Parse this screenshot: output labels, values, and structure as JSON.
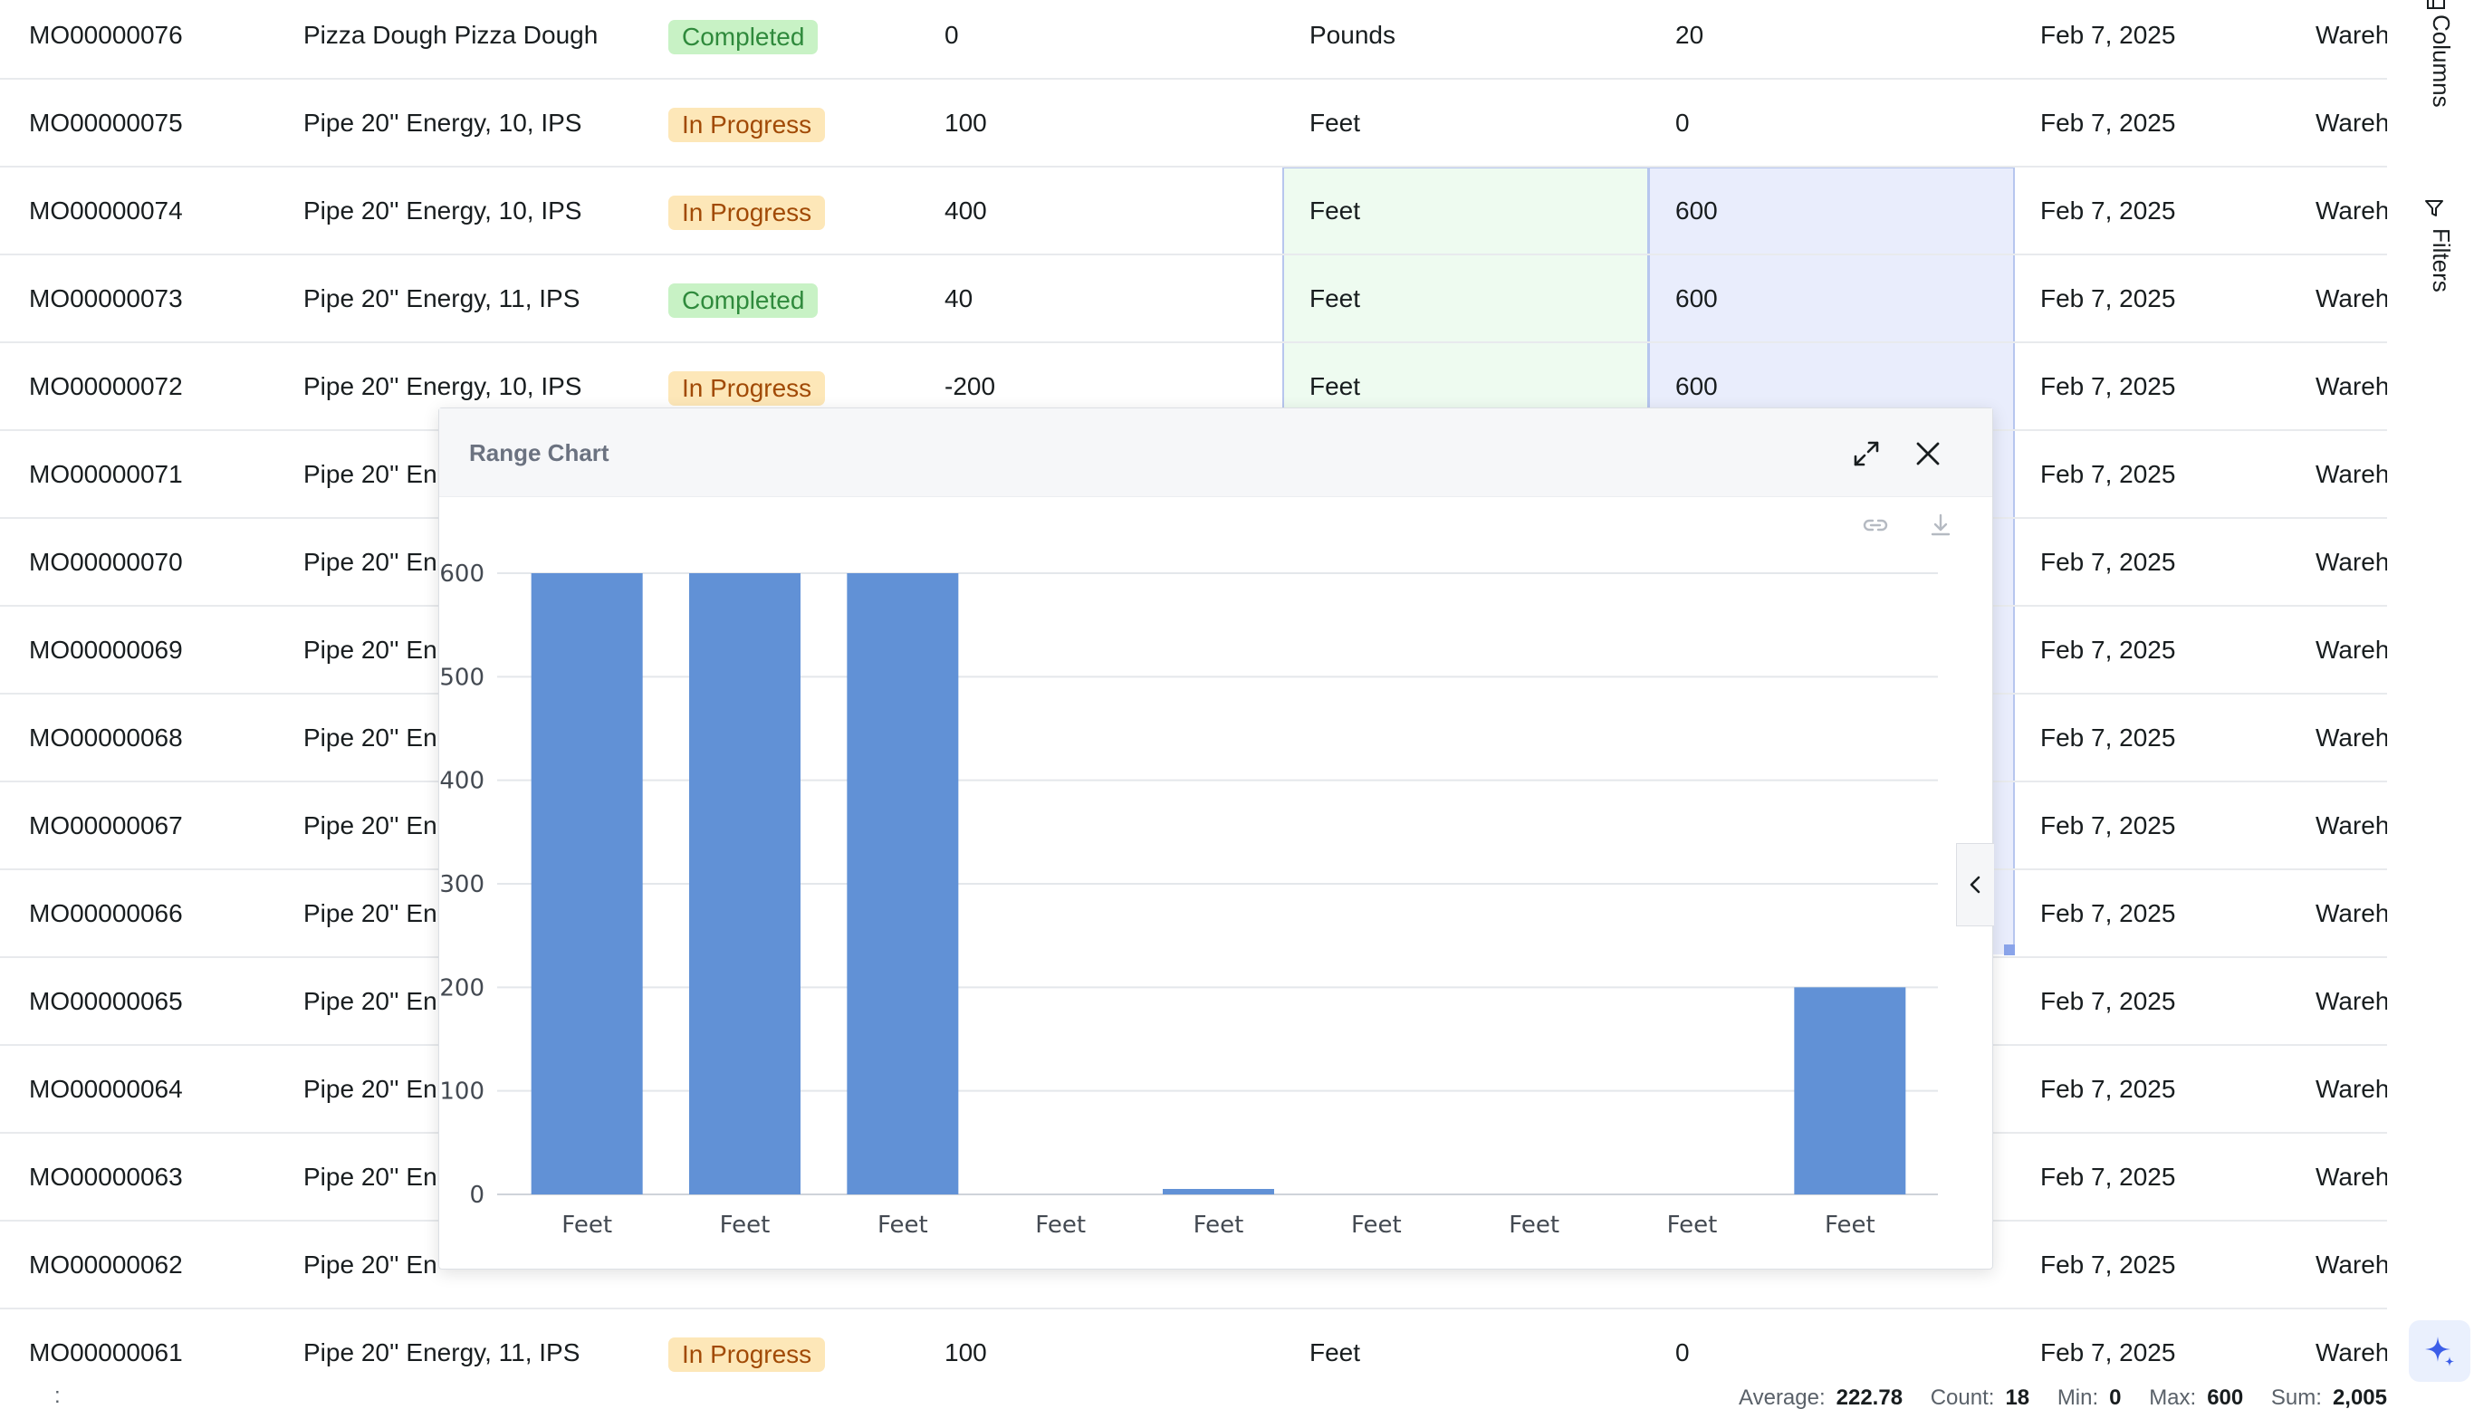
{
  "grid": {
    "rows": [
      {
        "id": "MO00000076",
        "item": "Pizza Dough Pizza Dough",
        "status": "Completed",
        "qty": "0",
        "uom": "Pounds",
        "amount": "20",
        "date": "Feb 7, 2025",
        "warehouse": "Wareho"
      },
      {
        "id": "MO00000075",
        "item": "Pipe 20'' Energy, 10, IPS",
        "status": "In Progress",
        "qty": "100",
        "uom": "Feet",
        "amount": "0",
        "date": "Feb 7, 2025",
        "warehouse": "Wareho"
      },
      {
        "id": "MO00000074",
        "item": "Pipe 20'' Energy, 10, IPS",
        "status": "In Progress",
        "qty": "400",
        "uom": "Feet",
        "amount": "600",
        "date": "Feb 7, 2025",
        "warehouse": "Wareho"
      },
      {
        "id": "MO00000073",
        "item": "Pipe 20'' Energy, 11, IPS",
        "status": "Completed",
        "qty": "40",
        "uom": "Feet",
        "amount": "600",
        "date": "Feb 7, 2025",
        "warehouse": "Wareho"
      },
      {
        "id": "MO00000072",
        "item": "Pipe 20'' Energy, 10, IPS",
        "status": "In Progress",
        "qty": "-200",
        "uom": "Feet",
        "amount": "600",
        "date": "Feb 7, 2025",
        "warehouse": "Wareho"
      },
      {
        "id": "MO00000071",
        "item": "Pipe 20'' En",
        "status": "",
        "qty": "",
        "uom": "",
        "amount": "",
        "date": "Feb 7, 2025",
        "warehouse": "Wareho"
      },
      {
        "id": "MO00000070",
        "item": "Pipe 20'' En",
        "status": "",
        "qty": "",
        "uom": "",
        "amount": "",
        "date": "Feb 7, 2025",
        "warehouse": "Wareho"
      },
      {
        "id": "MO00000069",
        "item": "Pipe 20'' En",
        "status": "",
        "qty": "",
        "uom": "",
        "amount": "",
        "date": "Feb 7, 2025",
        "warehouse": "Wareho"
      },
      {
        "id": "MO00000068",
        "item": "Pipe 20'' En",
        "status": "",
        "qty": "",
        "uom": "",
        "amount": "",
        "date": "Feb 7, 2025",
        "warehouse": "Wareho"
      },
      {
        "id": "MO00000067",
        "item": "Pipe 20'' En",
        "status": "",
        "qty": "",
        "uom": "",
        "amount": "",
        "date": "Feb 7, 2025",
        "warehouse": "Wareho"
      },
      {
        "id": "MO00000066",
        "item": "Pipe 20'' En",
        "status": "",
        "qty": "",
        "uom": "",
        "amount": "",
        "date": "Feb 7, 2025",
        "warehouse": "Wareho"
      },
      {
        "id": "MO00000065",
        "item": "Pipe 20'' En",
        "status": "",
        "qty": "",
        "uom": "",
        "amount": "",
        "date": "Feb 7, 2025",
        "warehouse": "Wareho"
      },
      {
        "id": "MO00000064",
        "item": "Pipe 20'' En",
        "status": "",
        "qty": "",
        "uom": "",
        "amount": "",
        "date": "Feb 7, 2025",
        "warehouse": "Wareho"
      },
      {
        "id": "MO00000063",
        "item": "Pipe 20'' En",
        "status": "",
        "qty": "",
        "uom": "",
        "amount": "",
        "date": "Feb 7, 2025",
        "warehouse": "Wareho"
      },
      {
        "id": "MO00000062",
        "item": "Pipe 20'' En",
        "status": "",
        "qty": "",
        "uom": "",
        "amount": "",
        "date": "Feb 7, 2025",
        "warehouse": "Wareho"
      },
      {
        "id": "MO00000061",
        "item": "Pipe 20'' Energy, 11, IPS",
        "status": "In Progress",
        "qty": "100",
        "uom": "Feet",
        "amount": "0",
        "date": "Feb 7, 2025",
        "warehouse": "Wareho"
      }
    ]
  },
  "side_bar": {
    "columns_label": "Columns",
    "filters_label": "Filters"
  },
  "status_bar": {
    "dots": ":",
    "average_label": "Average:",
    "average_value": "222.78",
    "count_label": "Count:",
    "count_value": "18",
    "min_label": "Min:",
    "min_value": "0",
    "max_label": "Max:",
    "max_value": "600",
    "sum_label": "Sum:",
    "sum_value": "2,005"
  },
  "chart_popup": {
    "title": "Range Chart",
    "icons": {
      "maximize": "expand-icon",
      "close": "close-icon",
      "link": "link-icon",
      "download": "download-icon",
      "collapse": "chevron-left-icon"
    }
  },
  "colors": {
    "bar": "#6191d6",
    "completed_bg": "#c8f2c5",
    "progress_bg": "#fde7b8",
    "selection_uom": "#eefbf0",
    "selection_amount": "#e9edfc",
    "ai_star": "#3c5ee8"
  },
  "chart_data": {
    "type": "bar",
    "categories": [
      "Feet",
      "Feet",
      "Feet",
      "Feet",
      "Feet",
      "Feet",
      "Feet",
      "Feet",
      "Feet"
    ],
    "values": [
      600,
      600,
      600,
      0,
      5,
      0,
      0,
      0,
      200
    ],
    "ylim": [
      0,
      600
    ],
    "yticks": [
      0,
      100,
      200,
      300,
      400,
      500,
      600
    ],
    "grid": true,
    "legend": "none"
  }
}
